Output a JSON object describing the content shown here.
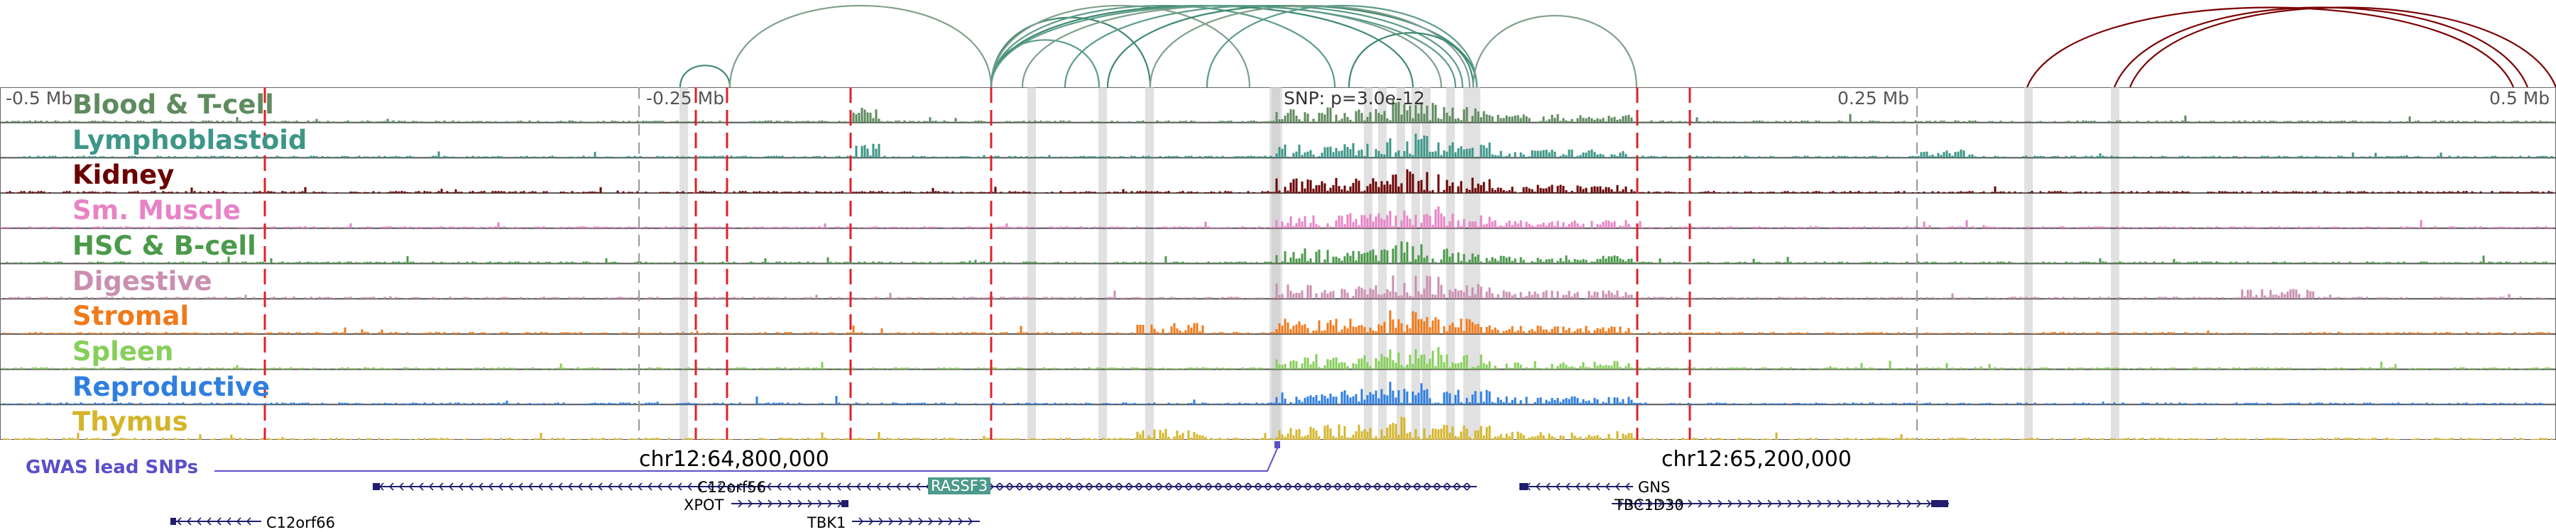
{
  "axis": {
    "tick_labels": [
      "-0.5 Mb",
      "-0.25 Mb",
      "0.25 Mb",
      "0.5 Mb"
    ],
    "snp_label": "SNP: p=3.0e-12"
  },
  "tracks": [
    {
      "name": "Blood & T-cell",
      "color": "#5f8b5f"
    },
    {
      "name": "Lymphoblastoid",
      "color": "#3d9688"
    },
    {
      "name": "Kidney",
      "color": "#6b0000"
    },
    {
      "name": "Sm. Muscle",
      "color": "#e883c6"
    },
    {
      "name": "HSC & B-cell",
      "color": "#4a9a4a"
    },
    {
      "name": "Digestive",
      "color": "#c98fb0"
    },
    {
      "name": "Stromal",
      "color": "#f07a1a"
    },
    {
      "name": "Spleen",
      "color": "#86cf5a"
    },
    {
      "name": "Reproductive",
      "color": "#2f7fe0"
    },
    {
      "name": "Thymus",
      "color": "#d4b52a"
    }
  ],
  "coordinates": [
    "chr12:64,800,000",
    "chr12:65,200,000"
  ],
  "gwas": {
    "label": "GWAS lead SNPs"
  },
  "genes": [
    {
      "name": "C12orf56"
    },
    {
      "name": "XPOT"
    },
    {
      "name": "TBK1"
    },
    {
      "name": "C12orf66"
    },
    {
      "name": "RASSF3"
    },
    {
      "name": "GNS"
    },
    {
      "name": "TBC1D30"
    }
  ],
  "colors": {
    "arc_green": "#3f8a6e",
    "arc_red": "#7a0000",
    "highlight_red": "#e0202a",
    "highlight_grey": "#c8c8c8",
    "gene_blue": "#1f1f6e",
    "gwas_purple": "#5a4fc9"
  }
}
